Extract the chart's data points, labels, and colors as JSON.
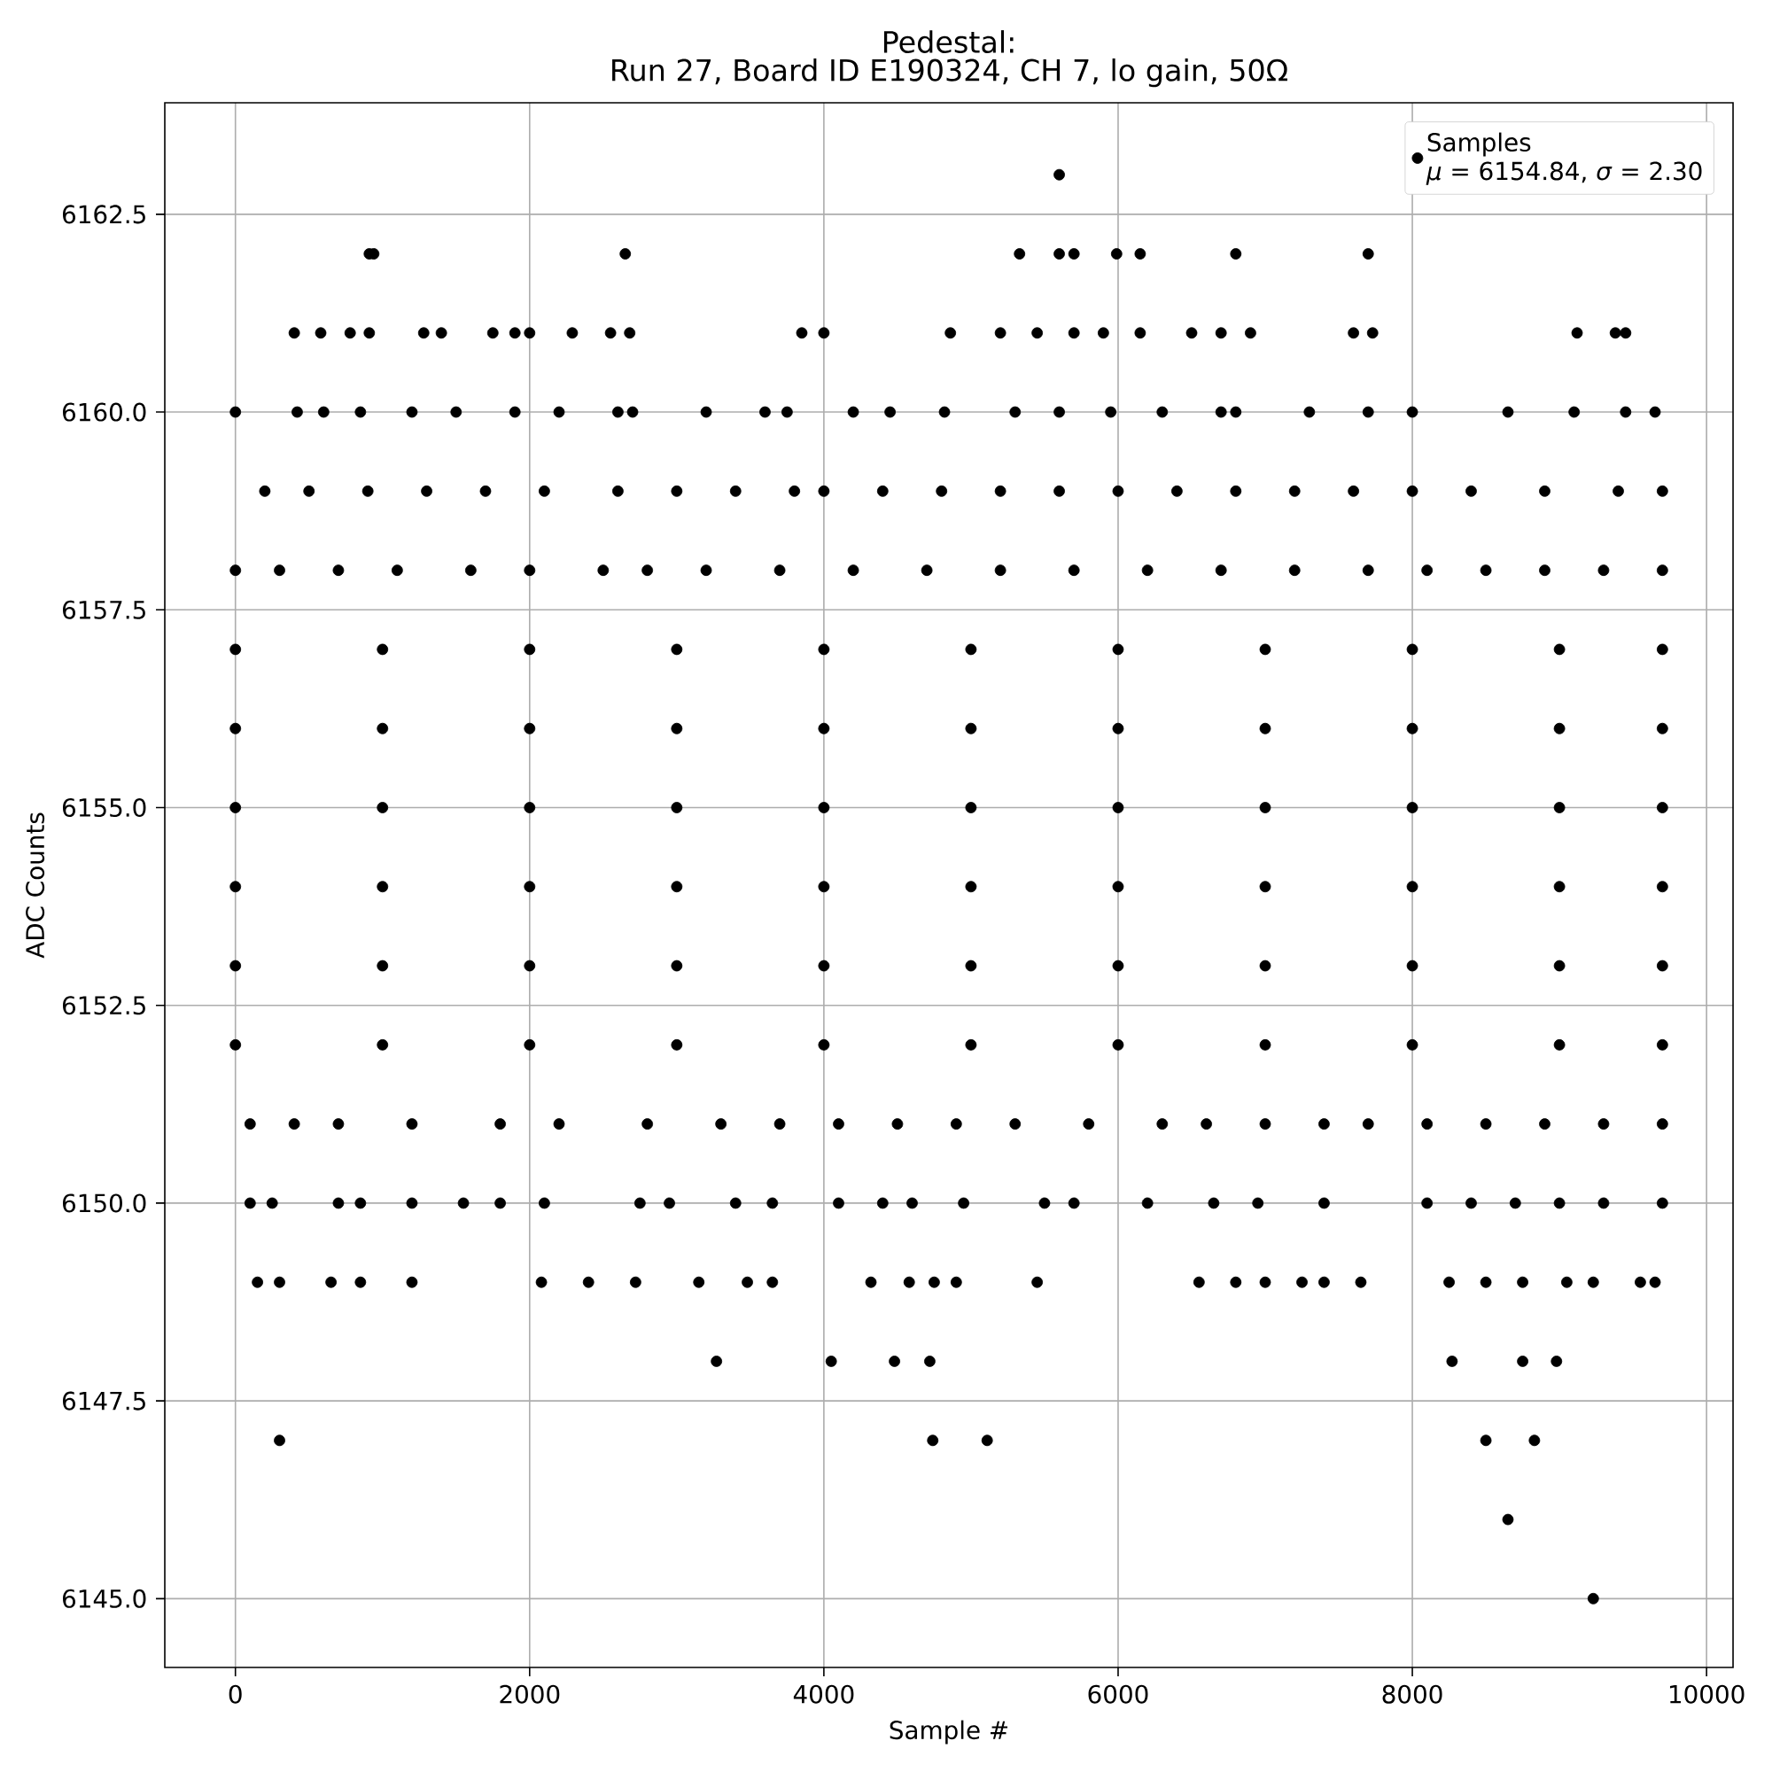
{
  "chart_data": {
    "type": "scatter",
    "title": "Pedestal:",
    "subtitle": "Run 27, Board ID E190324, CH 7, lo gain, 50Ω",
    "xlabel": "Sample #",
    "ylabel": "ADC Counts",
    "annotations": [
      "*μ* = 6154.84, *σ* = 2.30"
    ],
    "xlim": [
      -480,
      10180
    ],
    "ylim": [
      6144.13,
      6163.91
    ],
    "xticks": [
      0,
      2000,
      4000,
      6000,
      8000,
      10000
    ],
    "yticks": [
      {
        "value": 6145,
        "label": "6145.0"
      },
      {
        "value": 6147.5,
        "label": "6147.5"
      },
      {
        "value": 6150,
        "label": "6150.0"
      },
      {
        "value": 6152.5,
        "label": "6152.5"
      },
      {
        "value": 6155,
        "label": "6155.0"
      },
      {
        "value": 6157.5,
        "label": "6157.5"
      },
      {
        "value": 6160,
        "label": "6160.0"
      },
      {
        "value": 6162.5,
        "label": "6162.5"
      }
    ],
    "grid": true,
    "legend": "top right",
    "marker": "circle",
    "series": [
      {
        "name": "Samples",
        "color": "#000000",
        "x": [
          5600,
          910,
          940,
          2650,
          5330,
          5600,
          5700,
          5990,
          6150,
          6800,
          7700,
          400,
          580,
          780,
          910,
          1280,
          1400,
          1750,
          1900,
          2000,
          2290,
          2550,
          2680,
          3850,
          4000,
          4860,
          5200,
          5450,
          5700,
          5900,
          6150,
          6500,
          6700,
          6900,
          7600,
          7730,
          9120,
          9380,
          9450,
          0,
          420,
          600,
          850,
          1200,
          1500,
          1900,
          2200,
          2600,
          2700,
          3200,
          3600,
          3750,
          4200,
          4450,
          4820,
          5300,
          5600,
          5950,
          6300,
          6700,
          6800,
          7300,
          7700,
          8000,
          8650,
          9100,
          9450,
          9650,
          200,
          500,
          900,
          1300,
          1700,
          2100,
          2600,
          3000,
          3400,
          3800,
          4000,
          4400,
          4800,
          5200,
          5600,
          6000,
          6400,
          6800,
          7200,
          7600,
          8000,
          8400,
          8900,
          9400,
          9700,
          0,
          300,
          700,
          1100,
          1600,
          2000,
          2500,
          2800,
          3200,
          3700,
          4200,
          4700,
          5200,
          5700,
          6200,
          6700,
          7200,
          7700,
          8100,
          8500,
          8900,
          9300,
          9700,
          0,
          1000,
          2000,
          3000,
          4000,
          5000,
          6000,
          7000,
          8000,
          9000,
          9700,
          0,
          1000,
          2000,
          3000,
          4000,
          5000,
          6000,
          7000,
          8000,
          9000,
          9700,
          0,
          1000,
          2000,
          3000,
          4000,
          5000,
          6000,
          7000,
          8000,
          9000,
          9700,
          0,
          1000,
          2000,
          3000,
          4000,
          5000,
          6000,
          7000,
          8000,
          9000,
          9700,
          0,
          1000,
          2000,
          3000,
          4000,
          5000,
          6000,
          7000,
          8000,
          9000,
          9700,
          0,
          1000,
          2000,
          3000,
          4000,
          5000,
          6000,
          7000,
          8000,
          9000,
          9700,
          100,
          400,
          700,
          1200,
          1800,
          2200,
          2800,
          3300,
          3700,
          4100,
          4500,
          4900,
          5300,
          5800,
          6300,
          6600,
          7000,
          7400,
          7700,
          8100,
          8500,
          8900,
          9300,
          9700,
          100,
          250,
          700,
          850,
          1200,
          1550,
          1800,
          2100,
          2750,
          2950,
          3400,
          3650,
          4100,
          4400,
          4600,
          4950,
          5500,
          5700,
          6200,
          6650,
          6950,
          7400,
          8100,
          8400,
          8700,
          9000,
          9300,
          9700,
          150,
          300,
          650,
          850,
          1200,
          2080,
          2400,
          2720,
          3150,
          3480,
          3650,
          4320,
          4580,
          4750,
          4900,
          5450,
          6550,
          6800,
          7000,
          7250,
          7400,
          7650,
          8250,
          8500,
          8750,
          9050,
          9230,
          9550,
          9650,
          3270,
          4050,
          4480,
          4720,
          8270,
          8750,
          8980,
          300,
          4740,
          5110,
          8500,
          8830,
          8650,
          9230
        ],
        "values": [
          6163,
          6162,
          6162,
          6162,
          6162,
          6162,
          6162,
          6162,
          6162,
          6162,
          6162,
          6161,
          6161,
          6161,
          6161,
          6161,
          6161,
          6161,
          6161,
          6161,
          6161,
          6161,
          6161,
          6161,
          6161,
          6161,
          6161,
          6161,
          6161,
          6161,
          6161,
          6161,
          6161,
          6161,
          6161,
          6161,
          6161,
          6161,
          6161,
          6160,
          6160,
          6160,
          6160,
          6160,
          6160,
          6160,
          6160,
          6160,
          6160,
          6160,
          6160,
          6160,
          6160,
          6160,
          6160,
          6160,
          6160,
          6160,
          6160,
          6160,
          6160,
          6160,
          6160,
          6160,
          6160,
          6160,
          6160,
          6160,
          6159,
          6159,
          6159,
          6159,
          6159,
          6159,
          6159,
          6159,
          6159,
          6159,
          6159,
          6159,
          6159,
          6159,
          6159,
          6159,
          6159,
          6159,
          6159,
          6159,
          6159,
          6159,
          6159,
          6159,
          6159,
          6158,
          6158,
          6158,
          6158,
          6158,
          6158,
          6158,
          6158,
          6158,
          6158,
          6158,
          6158,
          6158,
          6158,
          6158,
          6158,
          6158,
          6158,
          6158,
          6158,
          6158,
          6158,
          6158,
          6157,
          6157,
          6157,
          6157,
          6157,
          6157,
          6157,
          6157,
          6157,
          6157,
          6157,
          6156,
          6156,
          6156,
          6156,
          6156,
          6156,
          6156,
          6156,
          6156,
          6156,
          6156,
          6155,
          6155,
          6155,
          6155,
          6155,
          6155,
          6155,
          6155,
          6155,
          6155,
          6155,
          6154,
          6154,
          6154,
          6154,
          6154,
          6154,
          6154,
          6154,
          6154,
          6154,
          6154,
          6153,
          6153,
          6153,
          6153,
          6153,
          6153,
          6153,
          6153,
          6153,
          6153,
          6153,
          6152,
          6152,
          6152,
          6152,
          6152,
          6152,
          6152,
          6152,
          6152,
          6152,
          6152,
          6151,
          6151,
          6151,
          6151,
          6151,
          6151,
          6151,
          6151,
          6151,
          6151,
          6151,
          6151,
          6151,
          6151,
          6151,
          6151,
          6151,
          6151,
          6151,
          6151,
          6151,
          6151,
          6151,
          6151,
          6150,
          6150,
          6150,
          6150,
          6150,
          6150,
          6150,
          6150,
          6150,
          6150,
          6150,
          6150,
          6150,
          6150,
          6150,
          6150,
          6150,
          6150,
          6150,
          6150,
          6150,
          6150,
          6150,
          6150,
          6150,
          6150,
          6150,
          6150,
          6149,
          6149,
          6149,
          6149,
          6149,
          6149,
          6149,
          6149,
          6149,
          6149,
          6149,
          6149,
          6149,
          6149,
          6149,
          6149,
          6149,
          6149,
          6149,
          6149,
          6149,
          6149,
          6149,
          6149,
          6149,
          6149,
          6149,
          6149,
          6149,
          6148,
          6148,
          6148,
          6148,
          6148,
          6148,
          6148,
          6147,
          6147,
          6147,
          6147,
          6147,
          6146,
          6145
        ]
      }
    ]
  }
}
